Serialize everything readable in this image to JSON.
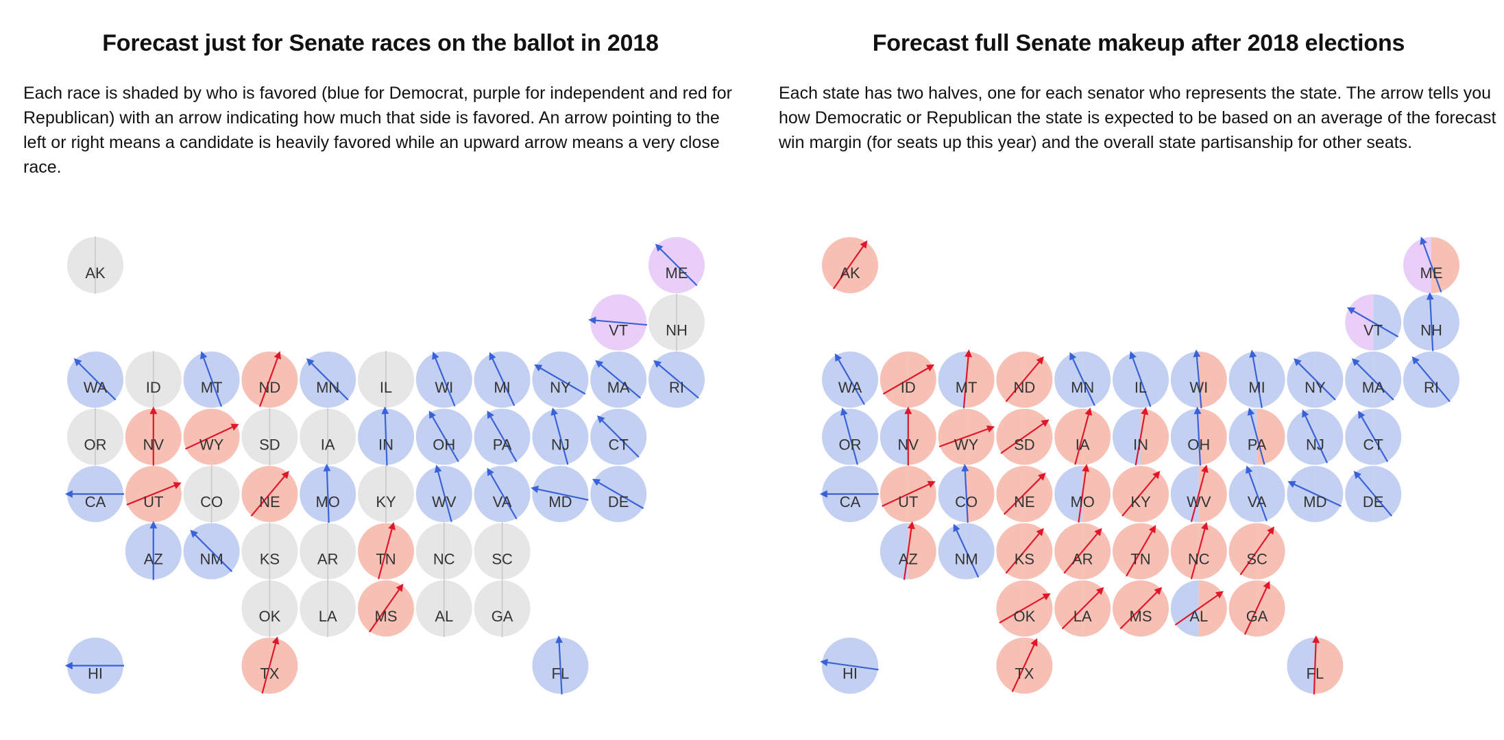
{
  "colors": {
    "dem": "#c3d0f2",
    "rep": "#f7c0b5",
    "ind": "#e9cff8",
    "none": "#e6e6e6",
    "arrow_dem": "#3a62d8",
    "arrow_rep": "#e0172a",
    "arrow_none": "#c8c8c8"
  },
  "maps": [
    {
      "title": "Forecast just for Senate races on the ballot in 2018",
      "description": "Each race is shaded by who is favored (blue for Democrat, purple for independent and red for Republican) with an arrow indicating how much that side is favored. An arrow pointing to the left or right means a candidate is heavily favored while an upward arrow means a very close race.",
      "states": [
        {
          "abbr": "AK",
          "row": 0,
          "col": 0,
          "fill": "none",
          "arrow": 0,
          "side": "none"
        },
        {
          "abbr": "ME",
          "row": 0,
          "col": 10,
          "fill": "ind",
          "arrow": -45,
          "side": "dem"
        },
        {
          "abbr": "VT",
          "row": 1,
          "col": 9,
          "fill": "ind",
          "arrow": -85,
          "side": "dem"
        },
        {
          "abbr": "NH",
          "row": 1,
          "col": 10,
          "fill": "none",
          "arrow": 0,
          "side": "none"
        },
        {
          "abbr": "WA",
          "row": 2,
          "col": 0,
          "fill": "dem",
          "arrow": -45,
          "side": "dem"
        },
        {
          "abbr": "ID",
          "row": 2,
          "col": 1,
          "fill": "none",
          "arrow": 0,
          "side": "none"
        },
        {
          "abbr": "MT",
          "row": 2,
          "col": 2,
          "fill": "dem",
          "arrow": -20,
          "side": "dem"
        },
        {
          "abbr": "ND",
          "row": 2,
          "col": 3,
          "fill": "rep",
          "arrow": 20,
          "side": "rep"
        },
        {
          "abbr": "MN",
          "row": 2,
          "col": 4,
          "fill": "dem",
          "arrow": -45,
          "side": "dem"
        },
        {
          "abbr": "IL",
          "row": 2,
          "col": 5,
          "fill": "none",
          "arrow": 0,
          "side": "none"
        },
        {
          "abbr": "WI",
          "row": 2,
          "col": 6,
          "fill": "dem",
          "arrow": -22,
          "side": "dem"
        },
        {
          "abbr": "MI",
          "row": 2,
          "col": 7,
          "fill": "dem",
          "arrow": -25,
          "side": "dem"
        },
        {
          "abbr": "NY",
          "row": 2,
          "col": 8,
          "fill": "dem",
          "arrow": -60,
          "side": "dem"
        },
        {
          "abbr": "MA",
          "row": 2,
          "col": 9,
          "fill": "dem",
          "arrow": -50,
          "side": "dem"
        },
        {
          "abbr": "RI",
          "row": 2,
          "col": 10,
          "fill": "dem",
          "arrow": -50,
          "side": "dem"
        },
        {
          "abbr": "OR",
          "row": 3,
          "col": 0,
          "fill": "none",
          "arrow": 0,
          "side": "none"
        },
        {
          "abbr": "NV",
          "row": 3,
          "col": 1,
          "fill": "rep",
          "arrow": 0,
          "side": "rep"
        },
        {
          "abbr": "WY",
          "row": 3,
          "col": 2,
          "fill": "rep",
          "arrow": 65,
          "side": "rep"
        },
        {
          "abbr": "SD",
          "row": 3,
          "col": 3,
          "fill": "none",
          "arrow": 0,
          "side": "none"
        },
        {
          "abbr": "IA",
          "row": 3,
          "col": 4,
          "fill": "none",
          "arrow": 0,
          "side": "none"
        },
        {
          "abbr": "IN",
          "row": 3,
          "col": 5,
          "fill": "dem",
          "arrow": -2,
          "side": "dem"
        },
        {
          "abbr": "OH",
          "row": 3,
          "col": 6,
          "fill": "dem",
          "arrow": -30,
          "side": "dem"
        },
        {
          "abbr": "PA",
          "row": 3,
          "col": 7,
          "fill": "dem",
          "arrow": -30,
          "side": "dem"
        },
        {
          "abbr": "NJ",
          "row": 3,
          "col": 8,
          "fill": "dem",
          "arrow": -15,
          "side": "dem"
        },
        {
          "abbr": "CT",
          "row": 3,
          "col": 9,
          "fill": "dem",
          "arrow": -45,
          "side": "dem"
        },
        {
          "abbr": "CA",
          "row": 4,
          "col": 0,
          "fill": "dem",
          "arrow": -90,
          "side": "dem"
        },
        {
          "abbr": "UT",
          "row": 4,
          "col": 1,
          "fill": "rep",
          "arrow": 68,
          "side": "rep"
        },
        {
          "abbr": "CO",
          "row": 4,
          "col": 2,
          "fill": "none",
          "arrow": 0,
          "side": "none"
        },
        {
          "abbr": "NE",
          "row": 4,
          "col": 3,
          "fill": "rep",
          "arrow": 40,
          "side": "rep"
        },
        {
          "abbr": "MO",
          "row": 4,
          "col": 4,
          "fill": "dem",
          "arrow": -2,
          "side": "dem"
        },
        {
          "abbr": "KY",
          "row": 4,
          "col": 5,
          "fill": "none",
          "arrow": 0,
          "side": "none"
        },
        {
          "abbr": "WV",
          "row": 4,
          "col": 6,
          "fill": "dem",
          "arrow": -15,
          "side": "dem"
        },
        {
          "abbr": "VA",
          "row": 4,
          "col": 7,
          "fill": "dem",
          "arrow": -30,
          "side": "dem"
        },
        {
          "abbr": "MD",
          "row": 4,
          "col": 8,
          "fill": "dem",
          "arrow": -78,
          "side": "dem"
        },
        {
          "abbr": "DE",
          "row": 4,
          "col": 9,
          "fill": "dem",
          "arrow": -60,
          "side": "dem"
        },
        {
          "abbr": "AZ",
          "row": 5,
          "col": 1,
          "fill": "dem",
          "arrow": 0,
          "side": "dem"
        },
        {
          "abbr": "NM",
          "row": 5,
          "col": 2,
          "fill": "dem",
          "arrow": -45,
          "side": "dem"
        },
        {
          "abbr": "KS",
          "row": 5,
          "col": 3,
          "fill": "none",
          "arrow": 0,
          "side": "none"
        },
        {
          "abbr": "AR",
          "row": 5,
          "col": 4,
          "fill": "none",
          "arrow": 0,
          "side": "none"
        },
        {
          "abbr": "TN",
          "row": 5,
          "col": 5,
          "fill": "rep",
          "arrow": 15,
          "side": "rep"
        },
        {
          "abbr": "NC",
          "row": 5,
          "col": 6,
          "fill": "none",
          "arrow": 0,
          "side": "none"
        },
        {
          "abbr": "SC",
          "row": 5,
          "col": 7,
          "fill": "none",
          "arrow": 0,
          "side": "none"
        },
        {
          "abbr": "OK",
          "row": 6,
          "col": 3,
          "fill": "none",
          "arrow": 0,
          "side": "none"
        },
        {
          "abbr": "LA",
          "row": 6,
          "col": 4,
          "fill": "none",
          "arrow": 0,
          "side": "none"
        },
        {
          "abbr": "MS",
          "row": 6,
          "col": 5,
          "fill": "rep",
          "arrow": 35,
          "side": "rep"
        },
        {
          "abbr": "AL",
          "row": 6,
          "col": 6,
          "fill": "none",
          "arrow": 0,
          "side": "none"
        },
        {
          "abbr": "GA",
          "row": 6,
          "col": 7,
          "fill": "none",
          "arrow": 0,
          "side": "none"
        },
        {
          "abbr": "HI",
          "row": 7,
          "col": 0,
          "fill": "dem",
          "arrow": -90,
          "side": "dem"
        },
        {
          "abbr": "TX",
          "row": 7,
          "col": 3,
          "fill": "rep",
          "arrow": 15,
          "side": "rep"
        },
        {
          "abbr": "FL",
          "row": 7,
          "col": 8,
          "fill": "dem",
          "arrow": -3,
          "side": "dem"
        }
      ]
    },
    {
      "title": "Forecast full Senate makeup after 2018 elections",
      "description": "Each state has two halves, one for each senator who represents the state. The arrow tells you how Democratic or Republican the state is expected to be based on an average of the forecast win margin (for seats up this year) and the overall state partisanship for other seats.",
      "states": [
        {
          "abbr": "AK",
          "row": 0,
          "col": 0,
          "fill": [
            "rep",
            "rep"
          ],
          "arrow": 35,
          "side": "rep"
        },
        {
          "abbr": "ME",
          "row": 0,
          "col": 10,
          "fill": [
            "ind",
            "rep"
          ],
          "arrow": -20,
          "side": "dem"
        },
        {
          "abbr": "VT",
          "row": 1,
          "col": 9,
          "fill": [
            "ind",
            "dem"
          ],
          "arrow": -60,
          "side": "dem"
        },
        {
          "abbr": "NH",
          "row": 1,
          "col": 10,
          "fill": [
            "dem",
            "dem"
          ],
          "arrow": -3,
          "side": "dem"
        },
        {
          "abbr": "WA",
          "row": 2,
          "col": 0,
          "fill": [
            "dem",
            "dem"
          ],
          "arrow": -30,
          "side": "dem"
        },
        {
          "abbr": "ID",
          "row": 2,
          "col": 1,
          "fill": [
            "rep",
            "rep"
          ],
          "arrow": 60,
          "side": "rep"
        },
        {
          "abbr": "MT",
          "row": 2,
          "col": 2,
          "fill": [
            "dem",
            "rep"
          ],
          "arrow": 5,
          "side": "rep"
        },
        {
          "abbr": "ND",
          "row": 2,
          "col": 3,
          "fill": [
            "rep",
            "rep"
          ],
          "arrow": 40,
          "side": "rep"
        },
        {
          "abbr": "MN",
          "row": 2,
          "col": 4,
          "fill": [
            "dem",
            "dem"
          ],
          "arrow": -25,
          "side": "dem"
        },
        {
          "abbr": "IL",
          "row": 2,
          "col": 5,
          "fill": [
            "dem",
            "dem"
          ],
          "arrow": -20,
          "side": "dem"
        },
        {
          "abbr": "WI",
          "row": 2,
          "col": 6,
          "fill": [
            "dem",
            "rep"
          ],
          "arrow": -5,
          "side": "dem"
        },
        {
          "abbr": "MI",
          "row": 2,
          "col": 7,
          "fill": [
            "dem",
            "dem"
          ],
          "arrow": -10,
          "side": "dem"
        },
        {
          "abbr": "NY",
          "row": 2,
          "col": 8,
          "fill": [
            "dem",
            "dem"
          ],
          "arrow": -45,
          "side": "dem"
        },
        {
          "abbr": "MA",
          "row": 2,
          "col": 9,
          "fill": [
            "dem",
            "dem"
          ],
          "arrow": -45,
          "side": "dem"
        },
        {
          "abbr": "RI",
          "row": 2,
          "col": 10,
          "fill": [
            "dem",
            "dem"
          ],
          "arrow": -40,
          "side": "dem"
        },
        {
          "abbr": "OR",
          "row": 3,
          "col": 0,
          "fill": [
            "dem",
            "dem"
          ],
          "arrow": -15,
          "side": "dem"
        },
        {
          "abbr": "NV",
          "row": 3,
          "col": 1,
          "fill": [
            "dem",
            "rep"
          ],
          "arrow": 0,
          "side": "rep"
        },
        {
          "abbr": "WY",
          "row": 3,
          "col": 2,
          "fill": [
            "rep",
            "rep"
          ],
          "arrow": 70,
          "side": "rep"
        },
        {
          "abbr": "SD",
          "row": 3,
          "col": 3,
          "fill": [
            "rep",
            "rep"
          ],
          "arrow": 55,
          "side": "rep"
        },
        {
          "abbr": "IA",
          "row": 3,
          "col": 4,
          "fill": [
            "rep",
            "rep"
          ],
          "arrow": 15,
          "side": "rep"
        },
        {
          "abbr": "IN",
          "row": 3,
          "col": 5,
          "fill": [
            "dem",
            "rep"
          ],
          "arrow": 10,
          "side": "rep"
        },
        {
          "abbr": "OH",
          "row": 3,
          "col": 6,
          "fill": [
            "dem",
            "rep"
          ],
          "arrow": -3,
          "side": "dem"
        },
        {
          "abbr": "PA",
          "row": 3,
          "col": 7,
          "fill": [
            "dem",
            "rep"
          ],
          "arrow": -15,
          "side": "dem"
        },
        {
          "abbr": "NJ",
          "row": 3,
          "col": 8,
          "fill": [
            "dem",
            "dem"
          ],
          "arrow": -25,
          "side": "dem"
        },
        {
          "abbr": "CT",
          "row": 3,
          "col": 9,
          "fill": [
            "dem",
            "dem"
          ],
          "arrow": -30,
          "side": "dem"
        },
        {
          "abbr": "CA",
          "row": 4,
          "col": 0,
          "fill": [
            "dem",
            "dem"
          ],
          "arrow": -90,
          "side": "dem"
        },
        {
          "abbr": "UT",
          "row": 4,
          "col": 1,
          "fill": [
            "rep",
            "rep"
          ],
          "arrow": 65,
          "side": "rep"
        },
        {
          "abbr": "CO",
          "row": 4,
          "col": 2,
          "fill": [
            "dem",
            "rep"
          ],
          "arrow": -3,
          "side": "dem"
        },
        {
          "abbr": "NE",
          "row": 4,
          "col": 3,
          "fill": [
            "rep",
            "rep"
          ],
          "arrow": 45,
          "side": "rep"
        },
        {
          "abbr": "MO",
          "row": 4,
          "col": 4,
          "fill": [
            "dem",
            "rep"
          ],
          "arrow": 8,
          "side": "rep"
        },
        {
          "abbr": "KY",
          "row": 4,
          "col": 5,
          "fill": [
            "rep",
            "rep"
          ],
          "arrow": 40,
          "side": "rep"
        },
        {
          "abbr": "WV",
          "row": 4,
          "col": 6,
          "fill": [
            "dem",
            "rep"
          ],
          "arrow": 15,
          "side": "rep"
        },
        {
          "abbr": "VA",
          "row": 4,
          "col": 7,
          "fill": [
            "dem",
            "dem"
          ],
          "arrow": -20,
          "side": "dem"
        },
        {
          "abbr": "MD",
          "row": 4,
          "col": 8,
          "fill": [
            "dem",
            "dem"
          ],
          "arrow": -65,
          "side": "dem"
        },
        {
          "abbr": "DE",
          "row": 4,
          "col": 9,
          "fill": [
            "dem",
            "dem"
          ],
          "arrow": -40,
          "side": "dem"
        },
        {
          "abbr": "AZ",
          "row": 5,
          "col": 1,
          "fill": [
            "dem",
            "rep"
          ],
          "arrow": 8,
          "side": "rep"
        },
        {
          "abbr": "NM",
          "row": 5,
          "col": 2,
          "fill": [
            "dem",
            "dem"
          ],
          "arrow": -25,
          "side": "dem"
        },
        {
          "abbr": "KS",
          "row": 5,
          "col": 3,
          "fill": [
            "rep",
            "rep"
          ],
          "arrow": 40,
          "side": "rep"
        },
        {
          "abbr": "AR",
          "row": 5,
          "col": 4,
          "fill": [
            "rep",
            "rep"
          ],
          "arrow": 40,
          "side": "rep"
        },
        {
          "abbr": "TN",
          "row": 5,
          "col": 5,
          "fill": [
            "rep",
            "rep"
          ],
          "arrow": 30,
          "side": "rep"
        },
        {
          "abbr": "NC",
          "row": 5,
          "col": 6,
          "fill": [
            "rep",
            "rep"
          ],
          "arrow": 15,
          "side": "rep"
        },
        {
          "abbr": "SC",
          "row": 5,
          "col": 7,
          "fill": [
            "rep",
            "rep"
          ],
          "arrow": 35,
          "side": "rep"
        },
        {
          "abbr": "OK",
          "row": 6,
          "col": 3,
          "fill": [
            "rep",
            "rep"
          ],
          "arrow": 60,
          "side": "rep"
        },
        {
          "abbr": "LA",
          "row": 6,
          "col": 4,
          "fill": [
            "rep",
            "rep"
          ],
          "arrow": 45,
          "side": "rep"
        },
        {
          "abbr": "MS",
          "row": 6,
          "col": 5,
          "fill": [
            "rep",
            "rep"
          ],
          "arrow": 45,
          "side": "rep"
        },
        {
          "abbr": "AL",
          "row": 6,
          "col": 6,
          "fill": [
            "dem",
            "rep"
          ],
          "arrow": 55,
          "side": "rep"
        },
        {
          "abbr": "GA",
          "row": 6,
          "col": 7,
          "fill": [
            "rep",
            "rep"
          ],
          "arrow": 25,
          "side": "rep"
        },
        {
          "abbr": "HI",
          "row": 7,
          "col": 0,
          "fill": [
            "dem",
            "dem"
          ],
          "arrow": -82,
          "side": "dem"
        },
        {
          "abbr": "TX",
          "row": 7,
          "col": 3,
          "fill": [
            "rep",
            "rep"
          ],
          "arrow": 25,
          "side": "rep"
        },
        {
          "abbr": "FL",
          "row": 7,
          "col": 8,
          "fill": [
            "dem",
            "rep"
          ],
          "arrow": 2,
          "side": "rep"
        }
      ]
    }
  ]
}
